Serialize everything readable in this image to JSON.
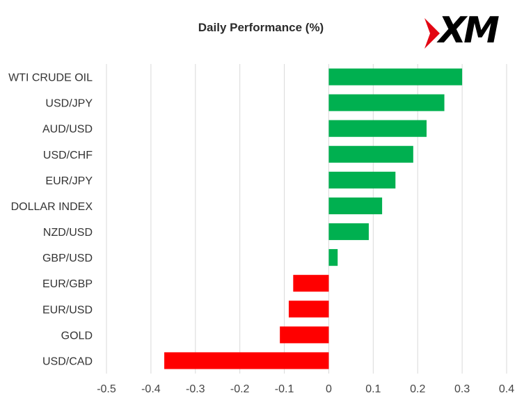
{
  "chart_data": {
    "type": "bar",
    "orientation": "horizontal",
    "title": "Daily Performance (%)",
    "categories": [
      "WTI CRUDE OIL",
      "USD/JPY",
      "AUD/USD",
      "USD/CHF",
      "EUR/JPY",
      "DOLLAR INDEX",
      "NZD/USD",
      "GBP/USD",
      "EUR/GBP",
      "EUR/USD",
      "GOLD",
      "USD/CAD"
    ],
    "values": [
      0.3,
      0.26,
      0.22,
      0.19,
      0.15,
      0.12,
      0.09,
      0.02,
      -0.08,
      -0.09,
      -0.11,
      -0.37
    ],
    "xlim": [
      -0.5,
      0.4
    ],
    "x_ticks": [
      "-0.5",
      "-0.4",
      "-0.3",
      "-0.2",
      "-0.1",
      "0",
      "0.1",
      "0.2",
      "0.3",
      "0.4"
    ],
    "grid": "vertical",
    "colors": {
      "positive": "#00b050",
      "negative": "#ff0000",
      "grid": "#d9d9d9"
    }
  },
  "logo": {
    "text": "XM",
    "mark_color": "#e30613"
  }
}
